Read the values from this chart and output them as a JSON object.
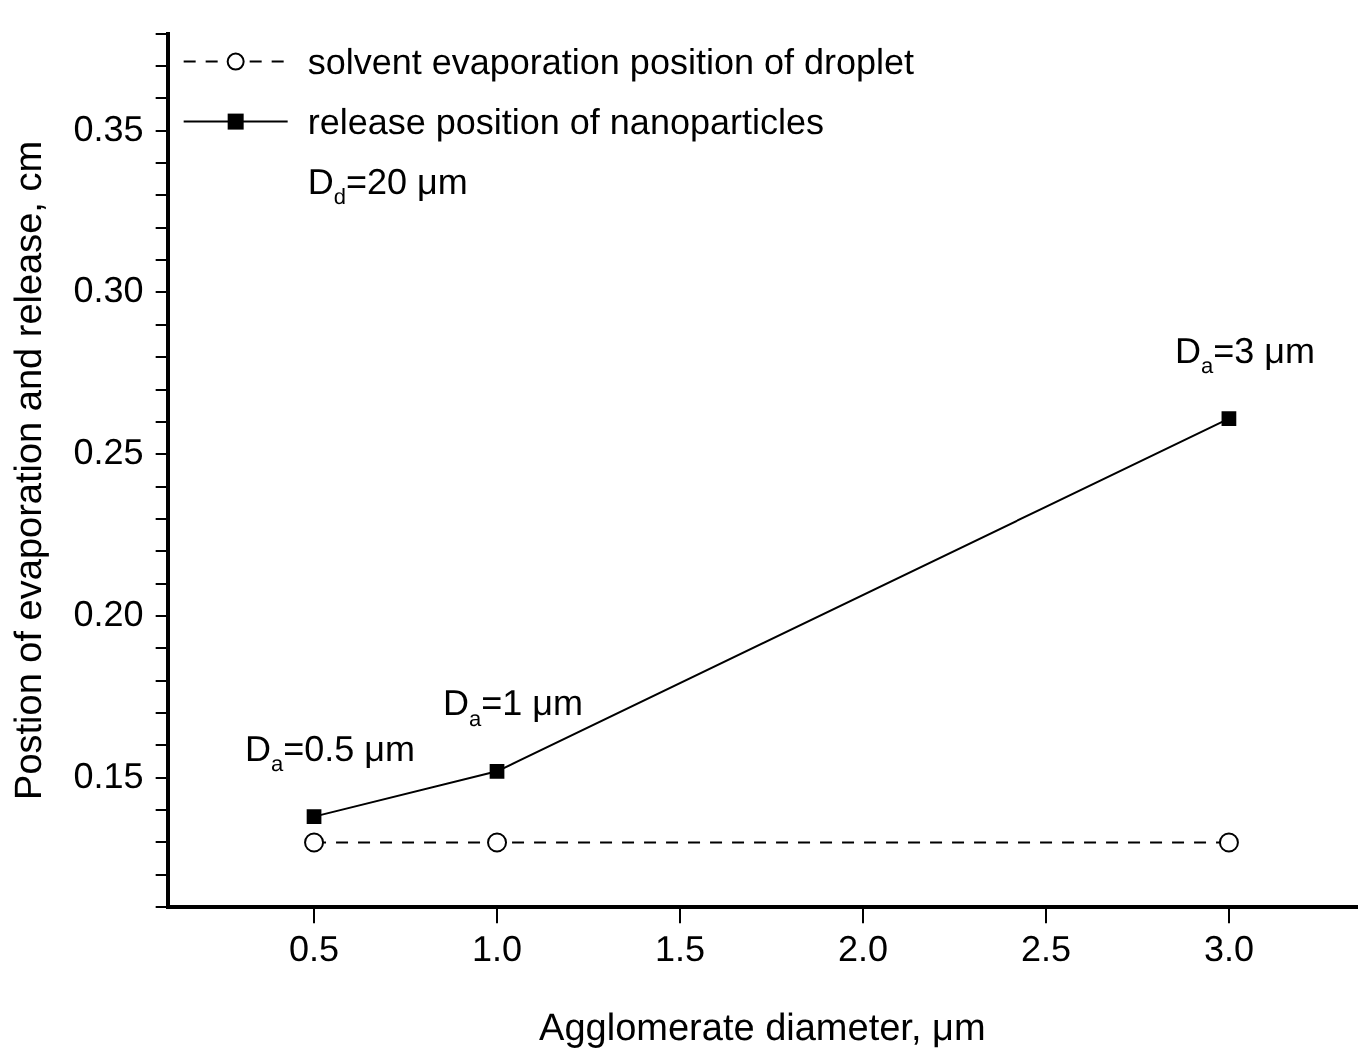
{
  "chart_data": {
    "type": "line",
    "xlabel": "Agglomerate diameter, μm",
    "ylabel": "Postion of evaporation and release, cm",
    "x": [
      0.5,
      1.0,
      3.0
    ],
    "series": [
      {
        "name": "solvent evaporation position of droplet",
        "color": "#000000",
        "values": [
          0.13,
          0.13,
          0.13
        ],
        "marker": "circle",
        "line_style": "dashed"
      },
      {
        "name": "release position of nanoparticles",
        "color": "#000000",
        "values": [
          0.138,
          0.152,
          0.261
        ],
        "marker": "square",
        "line_style": "solid"
      }
    ],
    "xlim": [
      0.1,
      3.35
    ],
    "xticks": [
      0.5,
      {
        "value": 1,
        "label": "1.0"
      },
      1.5,
      {
        "value": 2,
        "label": "2.0"
      },
      2.5,
      {
        "value": 3,
        "label": "3.0"
      }
    ],
    "ylim": [
      0.11,
      0.38
    ],
    "yticks": [
      {
        "value": 0.11,
        "label": null
      },
      {
        "value": 0.12,
        "label": null
      },
      {
        "value": 0.13,
        "label": null
      },
      {
        "value": 0.14,
        "label": null
      },
      0.15,
      {
        "value": 0.16,
        "label": null
      },
      {
        "value": 0.17,
        "label": null
      },
      {
        "value": 0.18,
        "label": null
      },
      {
        "value": 0.19,
        "label": null
      },
      {
        "value": 0.2,
        "label": "0.20"
      },
      {
        "value": 0.21,
        "label": null
      },
      {
        "value": 0.22,
        "label": null
      },
      {
        "value": 0.23,
        "label": null
      },
      {
        "value": 0.24,
        "label": null
      },
      0.25,
      {
        "value": 0.26,
        "label": null
      },
      {
        "value": 0.27,
        "label": null
      },
      {
        "value": 0.28,
        "label": null
      },
      {
        "value": 0.29,
        "label": null
      },
      {
        "value": 0.3,
        "label": "0.30"
      },
      {
        "value": 0.31,
        "label": null
      },
      {
        "value": 0.32,
        "label": null
      },
      {
        "value": 0.33,
        "label": null
      },
      {
        "value": 0.34,
        "label": null
      },
      0.35,
      {
        "value": 0.36,
        "label": null
      },
      {
        "value": 0.37,
        "label": null
      },
      {
        "value": 0.38,
        "label": null
      }
    ],
    "grid": false,
    "legend": "top left",
    "annotations": [
      "D$_{d}$=20 μm",
      {
        "text": "D$_{a}$=0.5 μm",
        "x": 0.5,
        "y": 0.138
      },
      {
        "text": "D$_{a}$=1 μm",
        "x": 1.0,
        "y": 0.152
      },
      {
        "text": "D$_{a}$=3 μm",
        "x": 3.0,
        "y": 0.261
      }
    ]
  }
}
